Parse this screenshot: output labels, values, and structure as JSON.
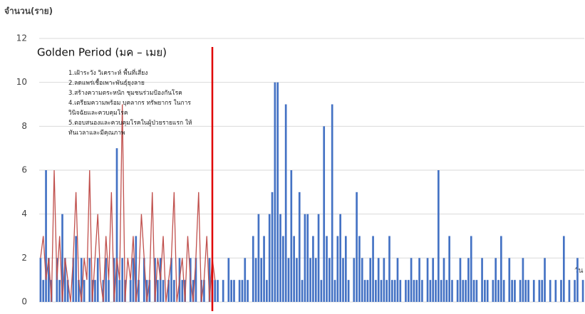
{
  "chart_data": {
    "type": "bar",
    "y_label": "จำนวน(ราย)",
    "x_label": "วัน",
    "annotation": "Golden Period (มค – เมย)",
    "measures": [
      "1.เฝ้าระวัง วิเคราะห์ พื้นที่เสี่ยง",
      "2.ลดแพร่เชื้อเพาะพันธุ์ยุงลาย",
      "3.สร้างความตระหนัก ชุมชนร่วมป้องกันโรค",
      "4.เตรียมความพร้อม บุคลากร ทรัพยากร ในการวินิจฉัยและควบคุมโรค",
      "5.ตอบสนองและควบคุมโรคในผู้ป่วยรายแรก ให้ทันเวลาและมีคุณภาพ"
    ],
    "categories": [
      null,
      null,
      null,
      null,
      null,
      null,
      null,
      null,
      null,
      null,
      null,
      null,
      null,
      null,
      null,
      null,
      null,
      null,
      null,
      null,
      null,
      null,
      null,
      null,
      null,
      null,
      null,
      null,
      null,
      null,
      null,
      null,
      null,
      null,
      null,
      null,
      null,
      null,
      null,
      null,
      null,
      null,
      null,
      null,
      null,
      null,
      null,
      null,
      null,
      null,
      null,
      null,
      null,
      null,
      null,
      null,
      null,
      null,
      null,
      null,
      null,
      null,
      null,
      null,
      null,
      null,
      null,
      null,
      null,
      null,
      null,
      null,
      null,
      null,
      null,
      null,
      null,
      null,
      null,
      null,
      null,
      null,
      null,
      null,
      null,
      null,
      null,
      null,
      null,
      null,
      null,
      null,
      null,
      null,
      null,
      null,
      null,
      null,
      null,
      null,
      null,
      null,
      null,
      null,
      null,
      null,
      null,
      null,
      null,
      null,
      null,
      null,
      null,
      null,
      null,
      null,
      null,
      null,
      null,
      null,
      null,
      null,
      null,
      null,
      null,
      null,
      null,
      null,
      null,
      null,
      null,
      null,
      null,
      null,
      null,
      null,
      null,
      null,
      null,
      null,
      null,
      null,
      null,
      null,
      null,
      null,
      null,
      null,
      null,
      null,
      null,
      null,
      null,
      null,
      null,
      null,
      null,
      null,
      null,
      null,
      null,
      null,
      null,
      null,
      null,
      null,
      null,
      null,
      null,
      null,
      null,
      null,
      null,
      null,
      null,
      null,
      null,
      null,
      null,
      null,
      null,
      null,
      null,
      null,
      null,
      null,
      null,
      null,
      null,
      null,
      null,
      null,
      null,
      null,
      null,
      null,
      null,
      null,
      null,
      null
    ],
    "series": [
      {
        "type": "bar",
        "color": "#4472c4",
        "values": [
          2,
          1,
          6,
          2,
          1,
          0,
          2,
          1,
          4,
          2,
          1,
          0,
          2,
          3,
          1,
          2,
          1,
          0,
          2,
          1,
          1,
          2,
          0,
          1,
          2,
          1,
          0,
          2,
          7,
          1,
          2,
          1,
          0,
          1,
          2,
          3,
          1,
          0,
          2,
          1,
          1,
          0,
          2,
          1,
          2,
          1,
          0,
          1,
          2,
          1,
          0,
          2,
          1,
          1,
          0,
          2,
          1,
          2,
          0,
          1,
          1,
          0,
          2,
          1,
          1,
          1,
          0,
          1,
          0,
          2,
          1,
          1,
          0,
          1,
          1,
          2,
          1,
          0,
          3,
          2,
          4,
          2,
          3,
          1,
          4,
          5,
          10,
          10,
          4,
          3,
          9,
          2,
          6,
          3,
          2,
          5,
          1,
          4,
          4,
          2,
          3,
          2,
          4,
          1,
          8,
          3,
          2,
          9,
          1,
          3,
          4,
          2,
          3,
          1,
          0,
          2,
          5,
          3,
          2,
          1,
          1,
          2,
          3,
          1,
          2,
          1,
          2,
          1,
          3,
          1,
          1,
          2,
          1,
          0,
          1,
          1,
          2,
          1,
          1,
          2,
          1,
          0,
          2,
          1,
          2,
          1,
          6,
          1,
          2,
          1,
          3,
          1,
          0,
          1,
          2,
          1,
          1,
          2,
          3,
          1,
          1,
          0,
          2,
          1,
          1,
          0,
          1,
          2,
          1,
          3,
          1,
          0,
          2,
          1,
          1,
          0,
          1,
          2,
          1,
          1,
          0,
          1,
          0,
          1,
          1,
          2,
          0,
          1,
          0,
          1,
          0,
          1,
          3,
          0,
          1,
          0,
          1,
          2,
          0,
          1
        ]
      },
      {
        "type": "line",
        "color": "#c0504d",
        "values": [
          2,
          3,
          1,
          2,
          0,
          6,
          1,
          3,
          0,
          2,
          1,
          0,
          2,
          5,
          1,
          0,
          2,
          1,
          6,
          0,
          2,
          4,
          1,
          0,
          3,
          1,
          5,
          0,
          2,
          1,
          9,
          0,
          2,
          1,
          3,
          0,
          1,
          4,
          2,
          0,
          1,
          5,
          0,
          2,
          1,
          3,
          0,
          1,
          2,
          5,
          0,
          1,
          2,
          0,
          3,
          1,
          0,
          2,
          5,
          0,
          1,
          3,
          0,
          2,
          1,
          null,
          null,
          null,
          null,
          null,
          null,
          null,
          null,
          null,
          null,
          null,
          null,
          null,
          null,
          null,
          null,
          null,
          null,
          null,
          null,
          null,
          null,
          null,
          null,
          null,
          null,
          null,
          null,
          null,
          null,
          null,
          null,
          null,
          null,
          null,
          null,
          null,
          null,
          null,
          null,
          null,
          null,
          null,
          null,
          null,
          null,
          null,
          null,
          null,
          null,
          null,
          null,
          null,
          null,
          null,
          null,
          null,
          null,
          null,
          null,
          null,
          null,
          null,
          null,
          null,
          null,
          null,
          null,
          null,
          null,
          null,
          null,
          null,
          null,
          null,
          null,
          null,
          null,
          null,
          null,
          null,
          null,
          null,
          null,
          null,
          null,
          null,
          null,
          null,
          null,
          null,
          null,
          null,
          null,
          null,
          null,
          null,
          null,
          null,
          null,
          null,
          null,
          null,
          null,
          null,
          null,
          null,
          null,
          null,
          null,
          null,
          null,
          null,
          null,
          null,
          null,
          null,
          null,
          null,
          null,
          null,
          null,
          null,
          null,
          null,
          null,
          null,
          null,
          null,
          null,
          null,
          null,
          null,
          null,
          null
        ]
      }
    ],
    "ylim": [
      0,
      12
    ],
    "yticks": [
      0,
      2,
      4,
      6,
      8,
      10,
      12
    ],
    "grid": true
  }
}
